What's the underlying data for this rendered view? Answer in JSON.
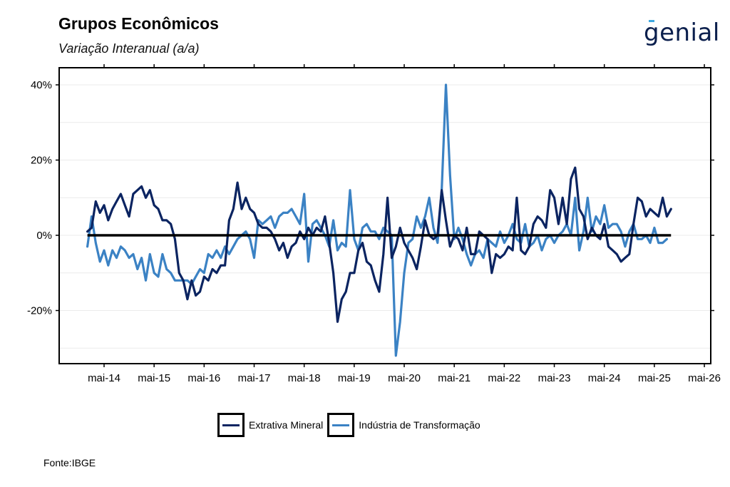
{
  "header": {
    "title": "Grupos Econômicos",
    "subtitle": "Variação Interanual (a/a)",
    "logo_text": "genial"
  },
  "footer": {
    "source": "Fonte:IBGE"
  },
  "colors": {
    "extrativa": "#0b2461",
    "transformacao": "#3b82c4",
    "zero_line": "#000000",
    "grid": "#ebebeb"
  },
  "chart_data": {
    "type": "line",
    "title": "Grupos Econômicos",
    "subtitle": "Variação Interanual (a/a)",
    "xlabel": "",
    "ylabel": "",
    "ylim": [
      -30,
      42
    ],
    "yticks": [
      -20,
      0,
      20,
      40
    ],
    "ytick_labels": [
      "-20%",
      "0%",
      "20%",
      "40%"
    ],
    "xticks": [
      "mai-14",
      "mai-15",
      "mai-16",
      "mai-17",
      "mai-18",
      "mai-19",
      "mai-20",
      "mai-21",
      "mai-22",
      "mai-23",
      "mai-24",
      "mai-25",
      "mai-26"
    ],
    "grid": true,
    "legend_position": "bottom",
    "start_month": "jan-14",
    "series": [
      {
        "name": "Extrativa Mineral",
        "values": [
          1,
          2,
          9,
          6,
          8,
          4,
          7,
          9,
          11,
          8,
          5,
          11,
          12,
          13,
          10,
          12,
          8,
          7,
          4,
          4,
          3,
          -1,
          -10,
          -12,
          -17,
          -12,
          -16,
          -15,
          -11,
          -12,
          -9,
          -10,
          -8,
          -8,
          4,
          7,
          14,
          7,
          10,
          7,
          6,
          3,
          2,
          2,
          1,
          -1,
          -4,
          -2,
          -6,
          -3,
          -2,
          1,
          -1,
          2,
          0,
          2,
          1,
          5,
          -2,
          -10,
          -23,
          -17,
          -15,
          -10,
          -10,
          -4,
          -2,
          -7,
          -8,
          -12,
          -15,
          -5,
          10,
          -6,
          -3,
          2,
          -2,
          -4,
          -6,
          -9,
          -3,
          4,
          0,
          -1,
          0,
          12,
          4,
          -3,
          0,
          -1,
          -4,
          2,
          -5,
          -5,
          1,
          0,
          -1,
          -10,
          -5,
          -6,
          -5,
          -3,
          -4,
          10,
          -4,
          -5,
          -3,
          3,
          5,
          4,
          2,
          12,
          10,
          3,
          10,
          3,
          15,
          18,
          7,
          5,
          -1,
          2,
          0,
          -1,
          3,
          -3,
          -4,
          -5,
          -7,
          -6,
          -5,
          3,
          10,
          9,
          5,
          7,
          6,
          5,
          10,
          5,
          7
        ],
        "color": "#0b2461"
      },
      {
        "name": "Indústria de Transformação",
        "values": [
          -3,
          5,
          -2,
          -7,
          -4,
          -8,
          -4,
          -6,
          -3,
          -4,
          -6,
          -5,
          -9,
          -6,
          -12,
          -5,
          -10,
          -11,
          -5,
          -9,
          -10,
          -12,
          -12,
          -12,
          -12,
          -13,
          -11,
          -9,
          -10,
          -5,
          -6,
          -4,
          -6,
          -3,
          -5,
          -3,
          -1,
          0,
          1,
          -1,
          -6,
          4,
          3,
          4,
          5,
          2,
          5,
          6,
          6,
          7,
          5,
          3,
          11,
          -7,
          3,
          4,
          2,
          0,
          -3,
          4,
          -4,
          -2,
          -3,
          12,
          -1,
          -4,
          2,
          3,
          1,
          1,
          -1,
          2,
          1,
          0,
          -32,
          -23,
          -10,
          -2,
          -1,
          5,
          2,
          5,
          10,
          2,
          -2,
          12,
          40,
          16,
          -1,
          2,
          -1,
          -5,
          -8,
          -5,
          -4,
          -6,
          -1,
          -2,
          -3,
          1,
          -2,
          0,
          3,
          -1,
          -2,
          3,
          -3,
          -2,
          0,
          -4,
          -1,
          0,
          -2,
          0,
          1,
          3,
          0,
          10,
          -4,
          1,
          10,
          1,
          5,
          3,
          8,
          2,
          3,
          3,
          1,
          -3,
          1,
          3,
          -1,
          -1,
          0,
          -2,
          2,
          -2,
          -2,
          -1
        ],
        "color": "#3b82c4"
      }
    ]
  }
}
